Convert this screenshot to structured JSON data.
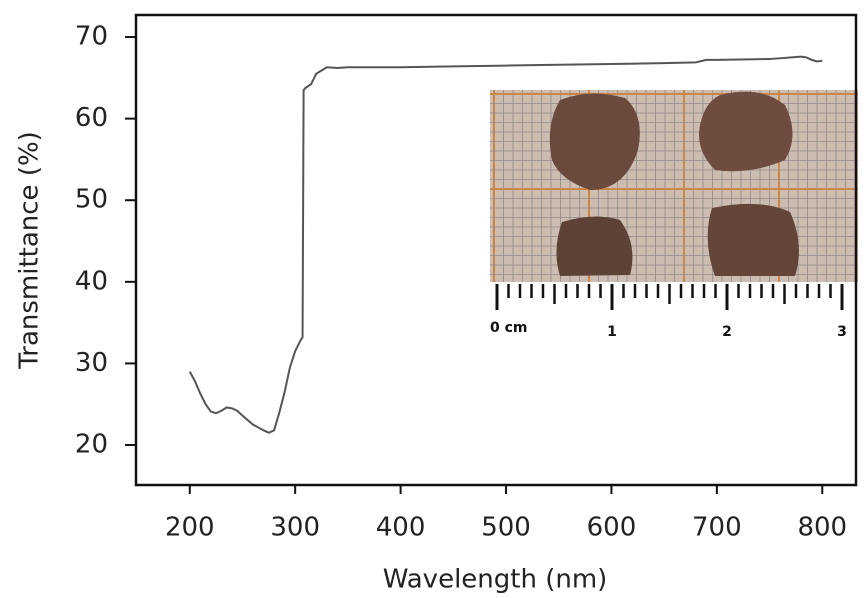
{
  "chart_data": {
    "type": "line",
    "x_label": "Wavelength (nm)",
    "y_label": "Transmittance (%)",
    "x": [
      200,
      205,
      210,
      215,
      220,
      225,
      230,
      235,
      240,
      245,
      250,
      260,
      270,
      275,
      280,
      285,
      290,
      295,
      300,
      305,
      307,
      308,
      310,
      315,
      320,
      330,
      340,
      350,
      400,
      450,
      500,
      550,
      600,
      650,
      680,
      690,
      700,
      750,
      780,
      785,
      790,
      795,
      800
    ],
    "series": [
      {
        "color": "#555555",
        "values": [
          29,
          27.8,
          26.3,
          25,
          24.1,
          23.9,
          24.2,
          24.6,
          24.5,
          24.2,
          23.6,
          22.5,
          21.8,
          21.5,
          21.8,
          24,
          26.5,
          29.5,
          31.5,
          32.8,
          33.2,
          63.5,
          63.8,
          64.2,
          65.5,
          66.3,
          66.2,
          66.3,
          66.3,
          66.4,
          66.5,
          66.6,
          66.7,
          66.8,
          66.9,
          67.2,
          67.2,
          67.3,
          67.6,
          67.5,
          67.2,
          67.0,
          67.1
        ]
      }
    ],
    "xlim": [
      149,
      832
    ],
    "xticks": [
      200,
      300,
      400,
      500,
      600,
      700,
      800
    ],
    "ylim": [
      15.1,
      72.7
    ],
    "yticks": [
      20,
      30,
      40,
      50,
      60,
      70
    ],
    "grid": false,
    "inset_scale_labels": [
      "0 cm",
      "1",
      "2",
      "3"
    ]
  }
}
